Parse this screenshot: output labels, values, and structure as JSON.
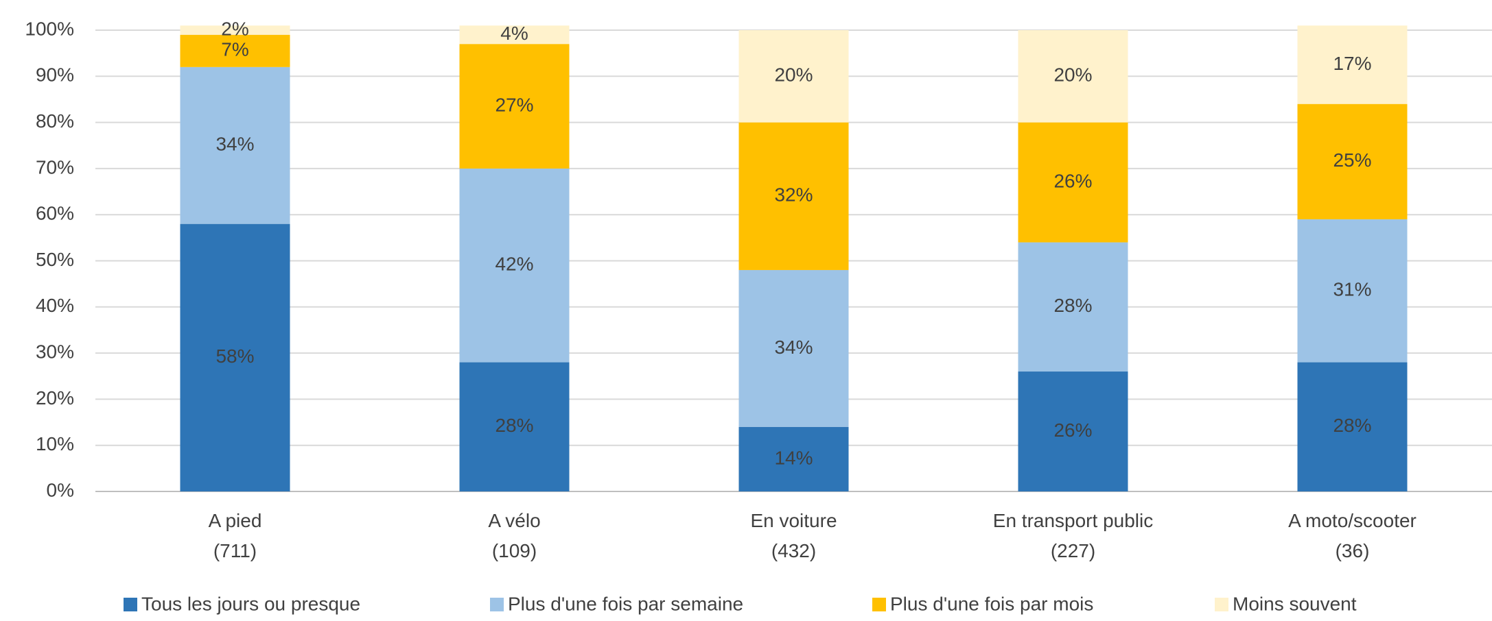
{
  "chart_data": {
    "type": "stacked_bar",
    "categories": [
      "A pied\n(711)",
      "A vélo\n(109)",
      "En voiture\n(432)",
      "En transport public\n(227)",
      "A moto/scooter\n(36)"
    ],
    "series": [
      {
        "name": "Tous les jours ou presque",
        "color": "#2e75b6",
        "values": [
          58,
          28,
          14,
          26,
          28
        ],
        "value_labels": [
          "58%",
          "28%",
          "14%",
          "26%",
          "28%"
        ]
      },
      {
        "name": "Plus d'une fois par semaine",
        "color": "#9dc3e6",
        "values": [
          34,
          42,
          34,
          28,
          31
        ],
        "value_labels": [
          "34%",
          "42%",
          "34%",
          "28%",
          "31%"
        ]
      },
      {
        "name": "Plus d'une fois par mois",
        "color": "#ffc000",
        "values": [
          7,
          27,
          32,
          26,
          25
        ],
        "value_labels": [
          "7%",
          "27%",
          "32%",
          "26%",
          "25%"
        ]
      },
      {
        "name": "Moins souvent",
        "color": "#fff2cc",
        "values": [
          2,
          4,
          20,
          20,
          17
        ],
        "value_labels": [
          "2%",
          "4%",
          "20%",
          "20%",
          "17%"
        ]
      }
    ],
    "ylim": [
      0,
      100
    ],
    "yticks": [
      {
        "value": 0,
        "label": "0%"
      },
      {
        "value": 10,
        "label": "10%"
      },
      {
        "value": 20,
        "label": "20%"
      },
      {
        "value": 30,
        "label": "30%"
      },
      {
        "value": 40,
        "label": "40%"
      },
      {
        "value": 50,
        "label": "50%"
      },
      {
        "value": 60,
        "label": "60%"
      },
      {
        "value": 70,
        "label": "70%"
      },
      {
        "value": 80,
        "label": "80%"
      },
      {
        "value": 90,
        "label": "90%"
      },
      {
        "value": 100,
        "label": "100%"
      }
    ],
    "grid": true,
    "legend": "bottom"
  }
}
